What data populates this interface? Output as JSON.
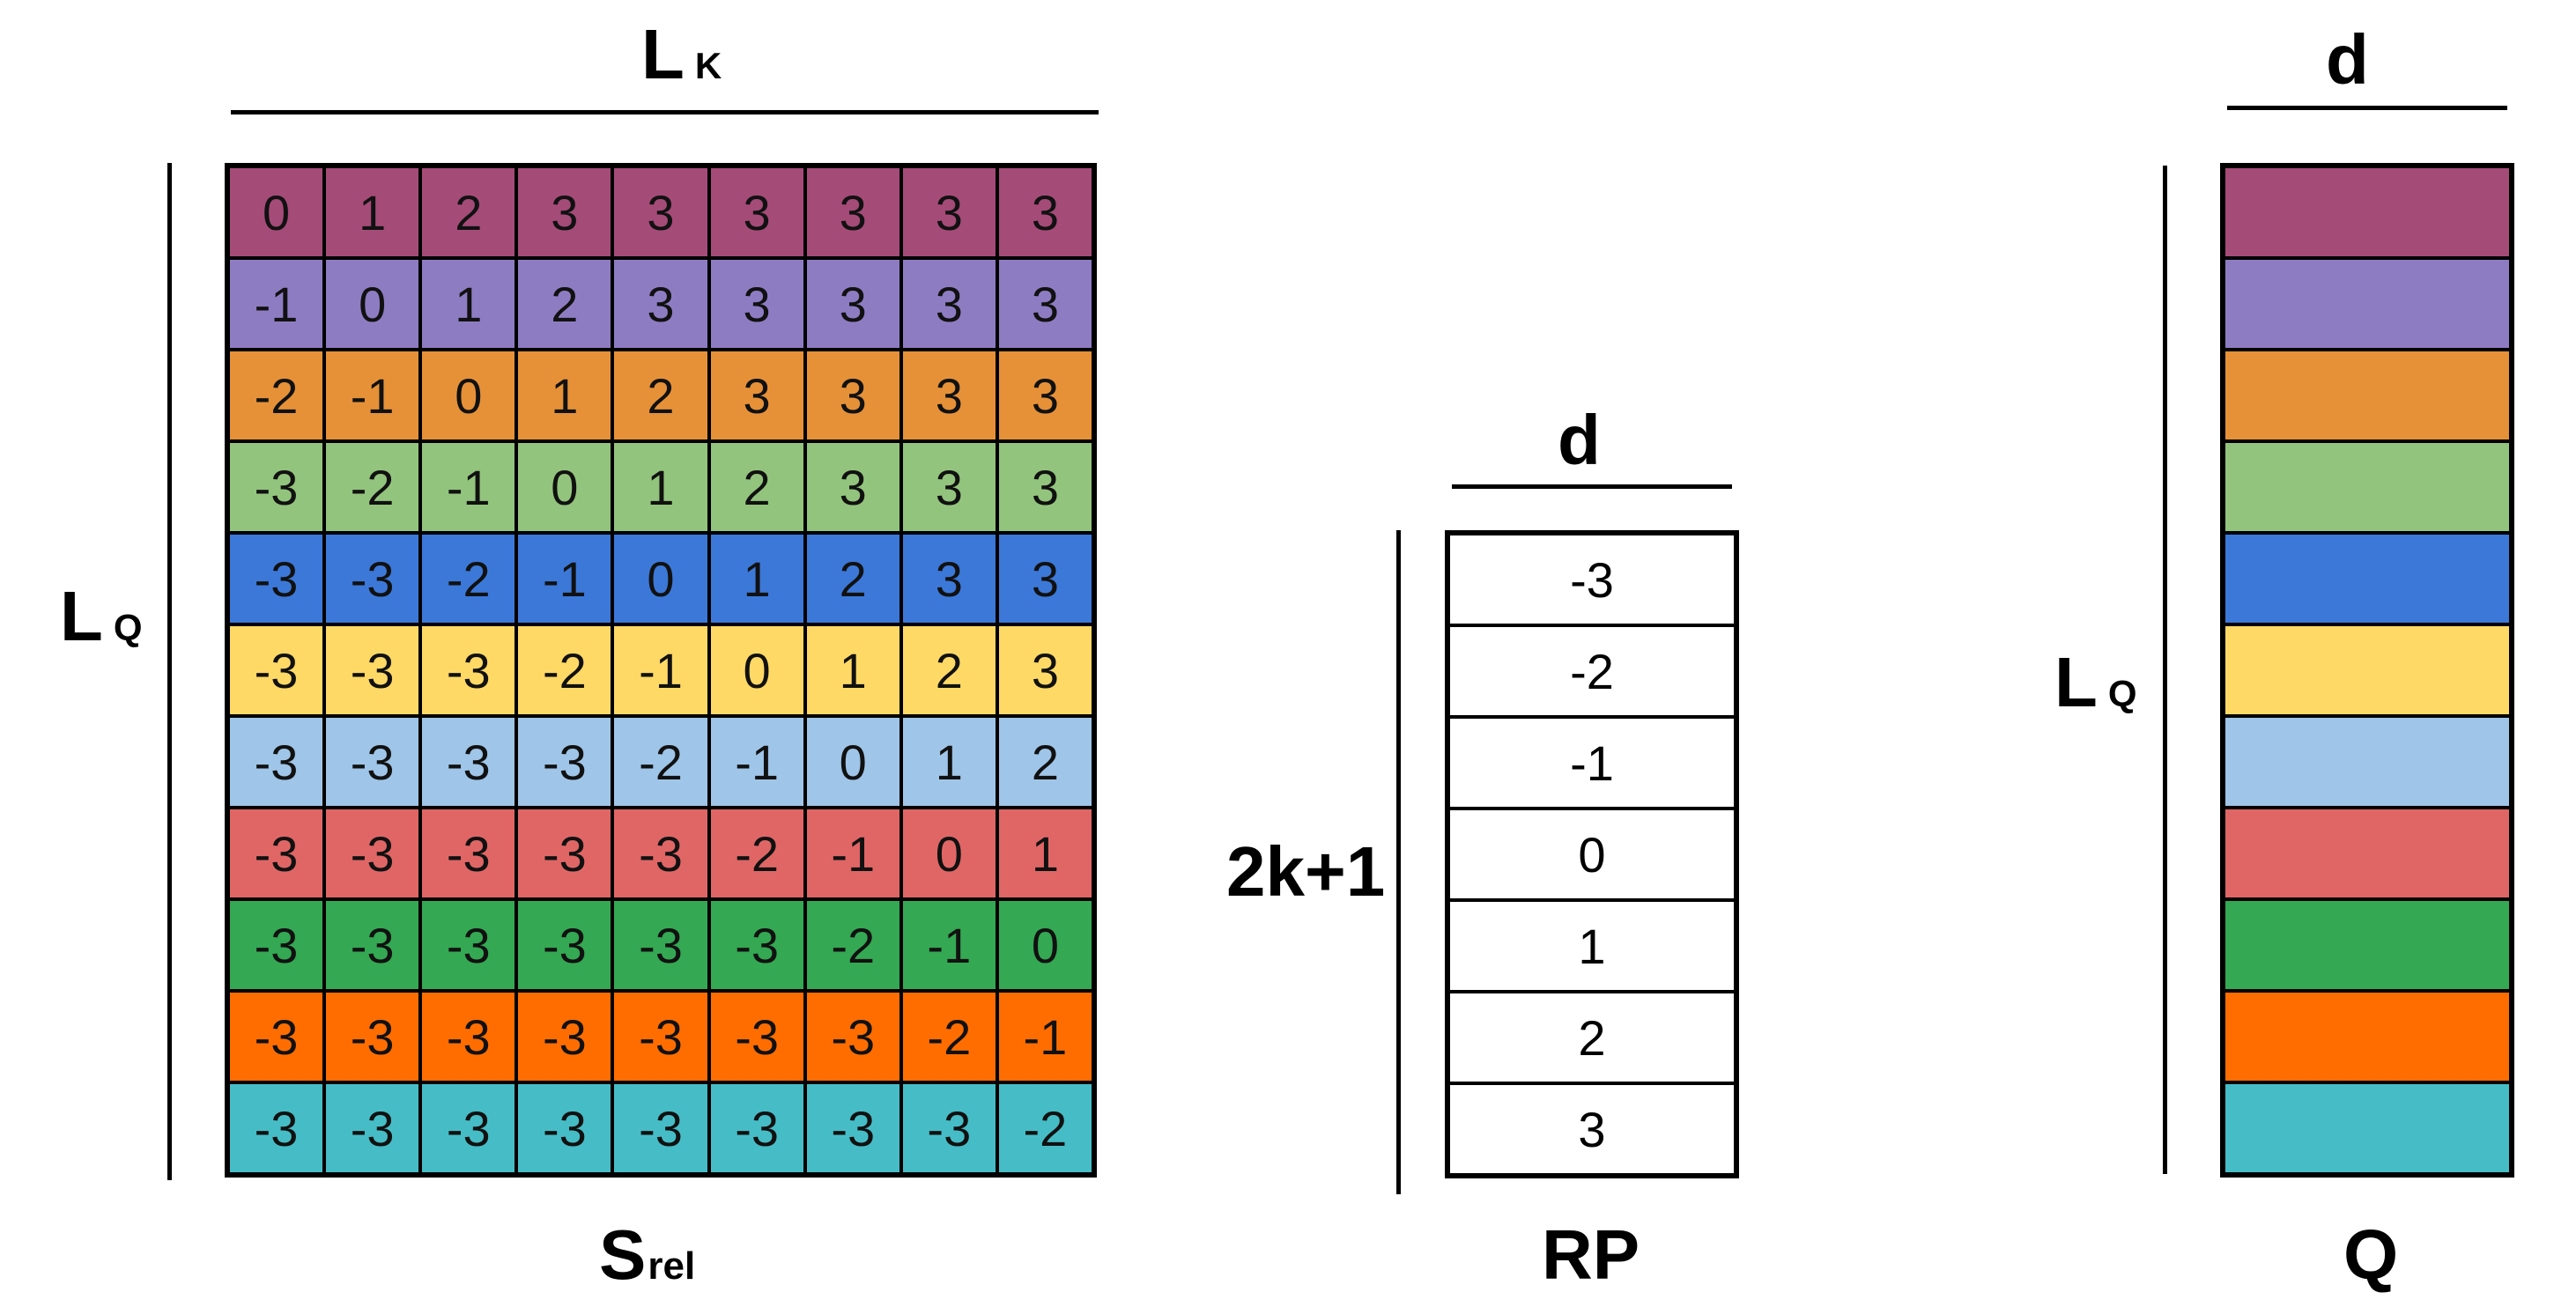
{
  "srel": {
    "top_label_main": "L",
    "top_label_sub": "K",
    "left_label_main": "L",
    "left_label_sub": "Q",
    "bottom_label_main": "S",
    "bottom_label_sub": "rel",
    "rows": [
      [
        "0",
        "1",
        "2",
        "3",
        "3",
        "3",
        "3",
        "3",
        "3"
      ],
      [
        "-1",
        "0",
        "1",
        "2",
        "3",
        "3",
        "3",
        "3",
        "3"
      ],
      [
        "-2",
        "-1",
        "0",
        "1",
        "2",
        "3",
        "3",
        "3",
        "3"
      ],
      [
        "-3",
        "-2",
        "-1",
        "0",
        "1",
        "2",
        "3",
        "3",
        "3"
      ],
      [
        "-3",
        "-3",
        "-2",
        "-1",
        "0",
        "1",
        "2",
        "3",
        "3"
      ],
      [
        "-3",
        "-3",
        "-3",
        "-2",
        "-1",
        "0",
        "1",
        "2",
        "3"
      ],
      [
        "-3",
        "-3",
        "-3",
        "-3",
        "-2",
        "-1",
        "0",
        "1",
        "2"
      ],
      [
        "-3",
        "-3",
        "-3",
        "-3",
        "-3",
        "-2",
        "-1",
        "0",
        "1"
      ],
      [
        "-3",
        "-3",
        "-3",
        "-3",
        "-3",
        "-3",
        "-2",
        "-1",
        "0"
      ],
      [
        "-3",
        "-3",
        "-3",
        "-3",
        "-3",
        "-3",
        "-3",
        "-2",
        "-1"
      ],
      [
        "-3",
        "-3",
        "-3",
        "-3",
        "-3",
        "-3",
        "-3",
        "-3",
        "-2"
      ]
    ]
  },
  "row_colors": [
    "#a54b78",
    "#8e7cc3",
    "#e69138",
    "#93c47d",
    "#3c78d8",
    "#ffd966",
    "#9fc5e8",
    "#e06666",
    "#34a853",
    "#ff6d01",
    "#46bdc6"
  ],
  "rp": {
    "top_label": "d",
    "left_label": "2k+1",
    "bottom_label": "RP",
    "values": [
      "-3",
      "-2",
      "-1",
      "0",
      "1",
      "2",
      "3"
    ]
  },
  "q": {
    "top_label": "d",
    "left_label_main": "L",
    "left_label_sub": "Q",
    "bottom_label": "Q"
  }
}
